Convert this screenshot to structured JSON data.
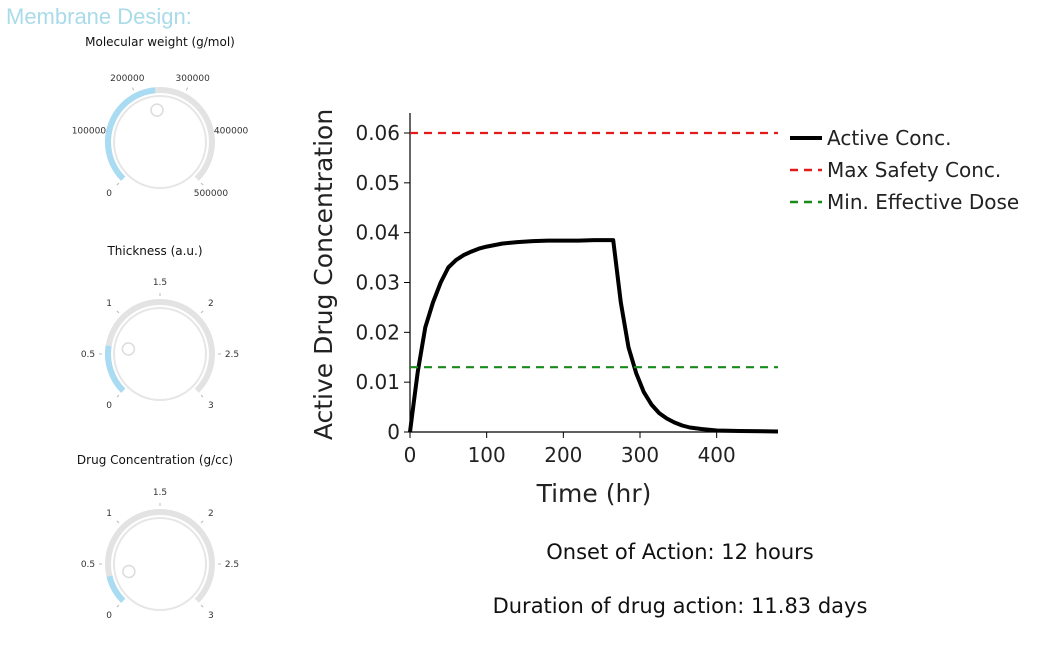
{
  "section_title": "Membrane Design:",
  "knobs": [
    {
      "label": "Molecular weight (g/mol)",
      "ticks": [
        "0",
        "100000",
        "200000",
        "300000",
        "400000",
        "500000"
      ],
      "min": 0,
      "max": 500000,
      "value": 240000
    },
    {
      "label": "Thickness (a.u.)",
      "ticks": [
        "0",
        "0.5",
        "1",
        "1.5",
        "2",
        "2.5",
        "3"
      ],
      "min": 0,
      "max": 3,
      "value": 0.6
    },
    {
      "label": "Drug Concentration (g/cc)",
      "ticks": [
        "0",
        "0.5",
        "1",
        "1.5",
        "2",
        "2.5",
        "3"
      ],
      "min": 0,
      "max": 3,
      "value": 0.35
    }
  ],
  "colors": {
    "knob_track": "#e3e3e3",
    "knob_active": "#a9dbf2",
    "active_line": "#000000",
    "max_line": "#e31a1c",
    "min_line": "#1a8a1a"
  },
  "chart_data": {
    "type": "line",
    "xlabel": "Time (hr)",
    "ylabel": "Active Drug Concentration",
    "xlim": [
      0,
      480
    ],
    "ylim": [
      0,
      0.065
    ],
    "xticks": [
      0,
      100,
      200,
      300,
      400
    ],
    "yticks": [
      0,
      0.01,
      0.02,
      0.03,
      0.04,
      0.05,
      0.06
    ],
    "ytick_labels": [
      "0",
      "0.01",
      "0.02",
      "0.03",
      "0.04",
      "0.05",
      "0.06"
    ],
    "grid": false,
    "legend": "right",
    "series": [
      {
        "name": "Active Conc.",
        "x": [
          0,
          5,
          10,
          20,
          30,
          40,
          50,
          60,
          70,
          80,
          90,
          100,
          120,
          140,
          160,
          180,
          200,
          220,
          240,
          265,
          275,
          285,
          295,
          305,
          315,
          325,
          335,
          345,
          355,
          365,
          380,
          400,
          430,
          480
        ],
        "y": [
          0,
          0.006,
          0.012,
          0.021,
          0.026,
          0.03,
          0.033,
          0.0345,
          0.0355,
          0.0362,
          0.0368,
          0.0372,
          0.0378,
          0.0381,
          0.0383,
          0.0384,
          0.0384,
          0.0384,
          0.0385,
          0.0385,
          0.026,
          0.017,
          0.0118,
          0.008,
          0.0055,
          0.0038,
          0.0027,
          0.0019,
          0.0013,
          0.0009,
          0.0006,
          0.0003,
          0.0002,
          0.0001
        ],
        "style": "solid"
      },
      {
        "name": "Max Safety Conc.",
        "x": [
          0,
          480
        ],
        "y": [
          0.06,
          0.06
        ],
        "style": "dashed"
      },
      {
        "name": "Min. Effective Dose",
        "x": [
          0,
          480
        ],
        "y": [
          0.013,
          0.013
        ],
        "style": "dashed"
      }
    ]
  },
  "results": {
    "onset": "Onset of Action: 12 hours",
    "duration": "Duration of drug action: 11.83 days"
  }
}
